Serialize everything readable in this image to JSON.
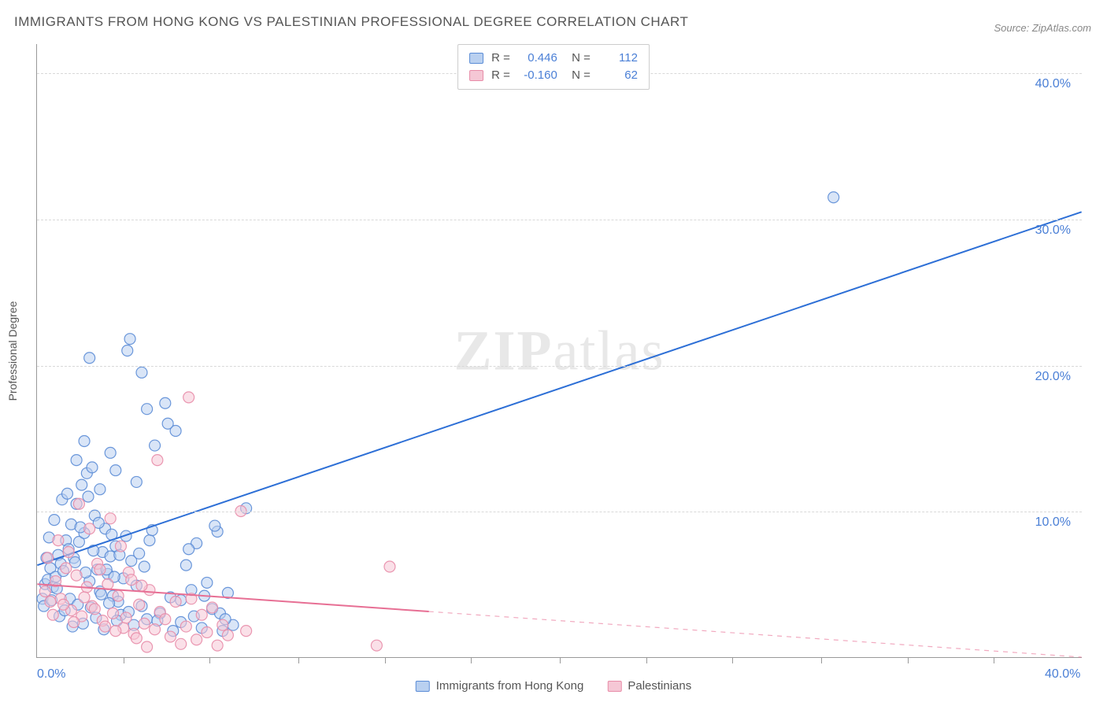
{
  "title": "IMMIGRANTS FROM HONG KONG VS PALESTINIAN PROFESSIONAL DEGREE CORRELATION CHART",
  "source": "Source: ZipAtlas.com",
  "y_axis_title": "Professional Degree",
  "watermark_a": "ZIP",
  "watermark_b": "atlas",
  "chart": {
    "type": "scatter",
    "xlim": [
      0,
      40
    ],
    "ylim": [
      0,
      42
    ],
    "x_ticks": [
      0,
      40
    ],
    "x_tick_labels": [
      "0.0%",
      "40.0%"
    ],
    "y_ticks": [
      10,
      20,
      30,
      40
    ],
    "y_tick_labels": [
      "10.0%",
      "20.0%",
      "30.0%",
      "40.0%"
    ],
    "minor_x_ticks": [
      3.3,
      6.6,
      10,
      13.3,
      16.6,
      20,
      23.3,
      26.6,
      30,
      33.3,
      36.6
    ],
    "grid_color": "#d8d8d8",
    "background_color": "#ffffff",
    "marker_radius": 7,
    "marker_opacity": 0.55,
    "marker_stroke_opacity": 0.9,
    "series": [
      {
        "name": "Immigrants from Hong Kong",
        "color_fill": "#b9d0f0",
        "color_stroke": "#5b8cd6",
        "line_color": "#2d6fd6",
        "r_value": "0.446",
        "n_value": "112",
        "trend": {
          "x1": 0,
          "y1": 6.3,
          "x2": 40,
          "y2": 30.5,
          "solid_until_x": 40
        },
        "points": [
          [
            0.3,
            5.0
          ],
          [
            0.4,
            5.3
          ],
          [
            0.5,
            6.1
          ],
          [
            0.6,
            4.8
          ],
          [
            0.7,
            5.5
          ],
          [
            0.8,
            7.0
          ],
          [
            0.9,
            6.4
          ],
          [
            1.0,
            5.9
          ],
          [
            1.1,
            8.0
          ],
          [
            1.2,
            7.4
          ],
          [
            1.3,
            9.1
          ],
          [
            1.4,
            6.8
          ],
          [
            1.5,
            10.5
          ],
          [
            1.6,
            7.9
          ],
          [
            1.7,
            11.8
          ],
          [
            1.8,
            8.5
          ],
          [
            1.9,
            12.6
          ],
          [
            2.0,
            5.2
          ],
          [
            2.1,
            13.0
          ],
          [
            2.2,
            9.7
          ],
          [
            2.3,
            6.0
          ],
          [
            2.4,
            4.5
          ],
          [
            2.5,
            7.2
          ],
          [
            2.6,
            8.8
          ],
          [
            2.7,
            5.7
          ],
          [
            2.8,
            6.9
          ],
          [
            2.9,
            4.2
          ],
          [
            3.0,
            7.6
          ],
          [
            3.1,
            3.8
          ],
          [
            3.2,
            2.9
          ],
          [
            3.3,
            5.4
          ],
          [
            3.4,
            8.3
          ],
          [
            3.5,
            3.1
          ],
          [
            3.6,
            6.6
          ],
          [
            3.7,
            2.2
          ],
          [
            3.8,
            4.9
          ],
          [
            3.9,
            7.1
          ],
          [
            4.0,
            3.5
          ],
          [
            4.1,
            6.2
          ],
          [
            4.2,
            2.6
          ],
          [
            4.3,
            8.0
          ],
          [
            4.5,
            14.5
          ],
          [
            4.7,
            3.0
          ],
          [
            4.9,
            17.4
          ],
          [
            5.1,
            4.1
          ],
          [
            5.3,
            15.5
          ],
          [
            5.5,
            2.4
          ],
          [
            5.7,
            6.3
          ],
          [
            5.9,
            4.6
          ],
          [
            6.1,
            7.8
          ],
          [
            6.3,
            2.0
          ],
          [
            6.5,
            5.1
          ],
          [
            6.7,
            3.3
          ],
          [
            6.9,
            8.6
          ],
          [
            7.1,
            1.8
          ],
          [
            7.3,
            4.4
          ],
          [
            0.2,
            4.0
          ],
          [
            0.25,
            3.5
          ],
          [
            0.35,
            6.8
          ],
          [
            0.45,
            8.2
          ],
          [
            0.55,
            3.9
          ],
          [
            0.65,
            9.4
          ],
          [
            0.75,
            4.7
          ],
          [
            0.85,
            2.8
          ],
          [
            0.95,
            10.8
          ],
          [
            1.05,
            3.2
          ],
          [
            1.15,
            11.2
          ],
          [
            1.25,
            4.0
          ],
          [
            1.35,
            2.1
          ],
          [
            1.45,
            6.5
          ],
          [
            1.55,
            3.6
          ],
          [
            1.65,
            8.9
          ],
          [
            1.75,
            2.3
          ],
          [
            1.85,
            5.8
          ],
          [
            1.95,
            11.0
          ],
          [
            2.05,
            3.4
          ],
          [
            2.15,
            7.3
          ],
          [
            2.25,
            2.7
          ],
          [
            2.35,
            9.2
          ],
          [
            2.45,
            4.3
          ],
          [
            2.55,
            1.9
          ],
          [
            2.65,
            6.0
          ],
          [
            2.75,
            3.7
          ],
          [
            2.85,
            8.4
          ],
          [
            2.95,
            5.5
          ],
          [
            3.05,
            2.5
          ],
          [
            3.15,
            7.0
          ],
          [
            3.45,
            21.0
          ],
          [
            3.55,
            21.8
          ],
          [
            4.0,
            19.5
          ],
          [
            4.2,
            17.0
          ],
          [
            5.0,
            16.0
          ],
          [
            5.5,
            3.9
          ],
          [
            6.0,
            2.8
          ],
          [
            6.8,
            9.0
          ],
          [
            7.0,
            3.0
          ],
          [
            7.5,
            2.2
          ],
          [
            8.0,
            10.2
          ],
          [
            3.0,
            12.8
          ],
          [
            2.8,
            14.0
          ],
          [
            1.5,
            13.5
          ],
          [
            2.0,
            20.5
          ],
          [
            4.6,
            2.5
          ],
          [
            5.2,
            1.8
          ],
          [
            5.8,
            7.4
          ],
          [
            6.4,
            4.2
          ],
          [
            7.2,
            2.6
          ],
          [
            30.5,
            31.5
          ],
          [
            4.4,
            8.7
          ],
          [
            3.8,
            12.0
          ],
          [
            2.4,
            11.5
          ],
          [
            1.8,
            14.8
          ]
        ]
      },
      {
        "name": "Palestinians",
        "color_fill": "#f5c7d5",
        "color_stroke": "#e88ca8",
        "line_color": "#e76f94",
        "r_value": "-0.160",
        "n_value": "62",
        "trend": {
          "x1": 0,
          "y1": 5.0,
          "x2": 40,
          "y2": 0.0,
          "solid_until_x": 15
        },
        "points": [
          [
            0.3,
            4.5
          ],
          [
            0.5,
            3.8
          ],
          [
            0.7,
            5.2
          ],
          [
            0.9,
            4.0
          ],
          [
            1.1,
            6.1
          ],
          [
            1.3,
            3.2
          ],
          [
            1.5,
            5.6
          ],
          [
            1.7,
            2.8
          ],
          [
            1.9,
            4.8
          ],
          [
            2.1,
            3.5
          ],
          [
            2.3,
            6.4
          ],
          [
            2.5,
            2.5
          ],
          [
            2.7,
            5.0
          ],
          [
            2.9,
            3.0
          ],
          [
            3.1,
            4.2
          ],
          [
            3.3,
            2.0
          ],
          [
            3.5,
            5.8
          ],
          [
            3.7,
            1.6
          ],
          [
            3.9,
            3.6
          ],
          [
            4.1,
            2.3
          ],
          [
            4.3,
            4.6
          ],
          [
            4.5,
            1.9
          ],
          [
            4.7,
            3.1
          ],
          [
            4.9,
            2.6
          ],
          [
            5.1,
            1.4
          ],
          [
            5.3,
            3.8
          ],
          [
            5.5,
            0.9
          ],
          [
            5.7,
            2.1
          ],
          [
            5.9,
            4.0
          ],
          [
            6.1,
            1.2
          ],
          [
            6.3,
            2.9
          ],
          [
            6.5,
            1.7
          ],
          [
            6.7,
            3.4
          ],
          [
            6.9,
            0.8
          ],
          [
            7.1,
            2.2
          ],
          [
            7.3,
            1.5
          ],
          [
            0.4,
            6.8
          ],
          [
            0.6,
            2.9
          ],
          [
            0.8,
            8.0
          ],
          [
            1.0,
            3.6
          ],
          [
            1.2,
            7.2
          ],
          [
            1.4,
            2.4
          ],
          [
            1.6,
            10.5
          ],
          [
            1.8,
            4.1
          ],
          [
            2.0,
            8.8
          ],
          [
            2.2,
            3.3
          ],
          [
            2.4,
            6.0
          ],
          [
            2.6,
            2.1
          ],
          [
            2.8,
            9.5
          ],
          [
            3.0,
            1.8
          ],
          [
            3.2,
            7.6
          ],
          [
            3.4,
            2.7
          ],
          [
            3.6,
            5.3
          ],
          [
            3.8,
            1.3
          ],
          [
            4.0,
            4.9
          ],
          [
            4.2,
            0.7
          ],
          [
            5.8,
            17.8
          ],
          [
            7.8,
            10.0
          ],
          [
            8.0,
            1.8
          ],
          [
            13.5,
            6.2
          ],
          [
            13.0,
            0.8
          ],
          [
            4.6,
            13.5
          ]
        ]
      }
    ],
    "legend_bottom": [
      {
        "swatch": "blue",
        "label": "Immigrants from Hong Kong"
      },
      {
        "swatch": "pink",
        "label": "Palestinians"
      }
    ]
  }
}
